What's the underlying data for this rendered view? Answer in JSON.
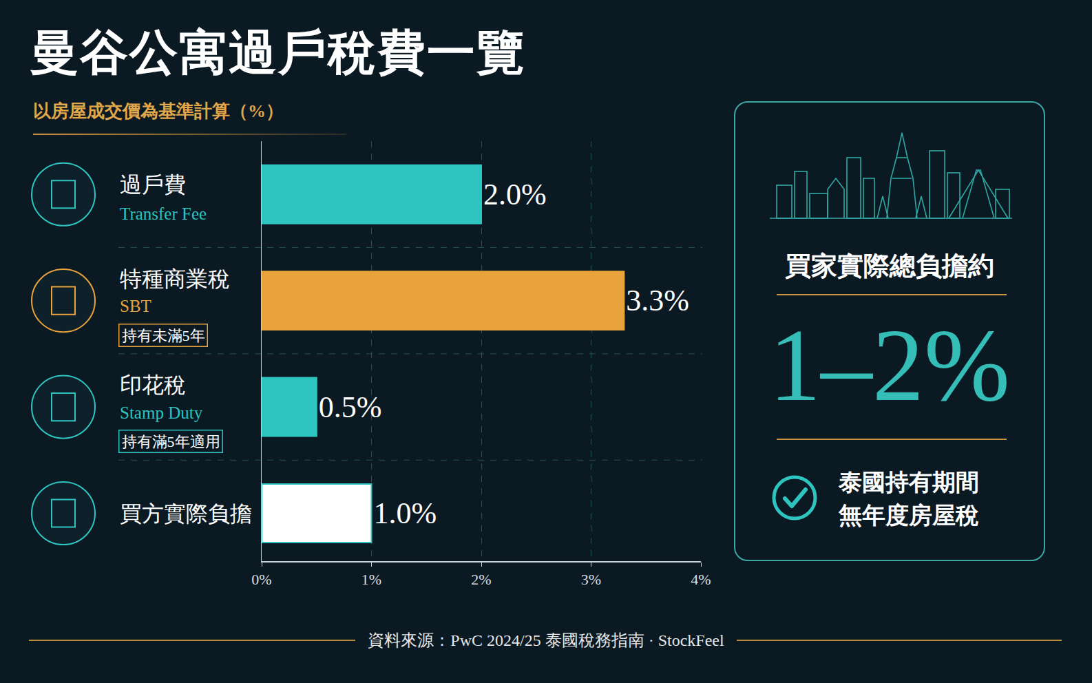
{
  "chart_data": {
    "type": "bar",
    "orientation": "horizontal",
    "title": "曼谷公寓過戶稅費一覽",
    "subtitle": "以房屋成交價為基準計算（%）",
    "categories": [
      "過戶費",
      "特種商業稅",
      "印花稅",
      "買方實際負擔"
    ],
    "category_notes": [
      "Transfer Fee",
      "SBT",
      "Stamp Duty",
      null
    ],
    "category_tags": [
      null,
      "持有未滿5年",
      "持有滿5年適用",
      null
    ],
    "values": [
      2.0,
      3.3,
      0.5,
      1.0
    ],
    "value_labels": [
      "2.0%",
      "3.3%",
      "0.5%",
      "1.0%"
    ],
    "colors": [
      "#2ec4c0",
      "#e8a33c",
      "#2ec4c0",
      "#ffffff"
    ],
    "xlim": [
      0,
      4
    ],
    "xticks": [
      {
        "value": 0,
        "label": "0%"
      },
      {
        "value": 1,
        "label": "1%"
      },
      {
        "value": 2,
        "label": "2%"
      },
      {
        "value": 3,
        "label": "3%"
      },
      {
        "value": 4,
        "label": "4%"
      }
    ],
    "grid": true,
    "data_labels": true,
    "tick_labels": "x"
  },
  "panel": {
    "heading": "買家實際總負擔約",
    "value": "1–2%",
    "notes": [
      "泰國持有期間",
      "無年度房屋稅"
    ]
  },
  "source": "資料來源：PwC 2024/25 泰國稅務指南 · StockFeel"
}
